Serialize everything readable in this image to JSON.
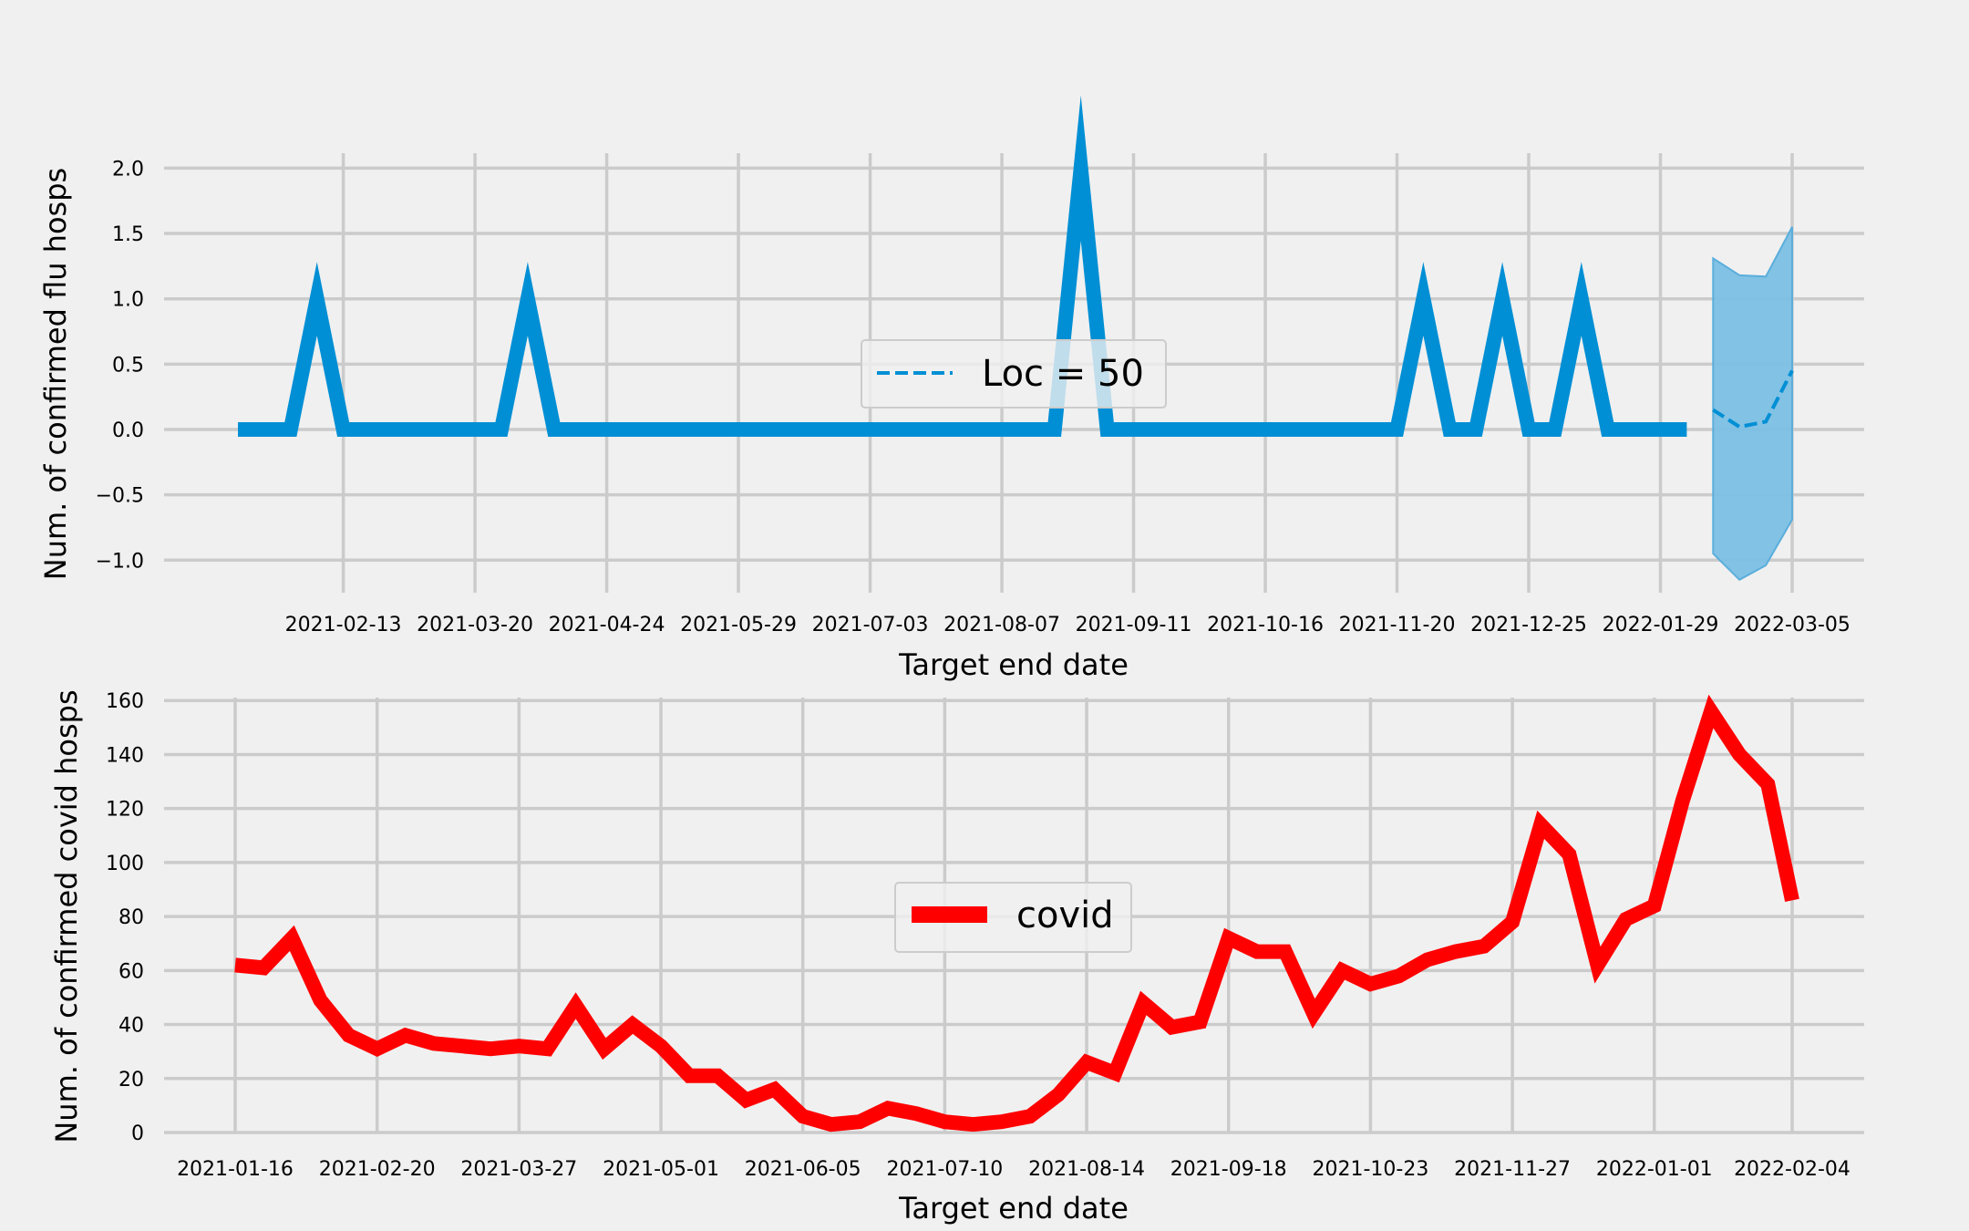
{
  "chart_data": [
    {
      "type": "line",
      "xlabel": "Target end date",
      "ylabel": "Num. of confirmed flu hosps",
      "ylim": [
        -1.25,
        2.1
      ],
      "yticks": [
        -1.0,
        -0.5,
        0.0,
        0.5,
        1.0,
        1.5,
        2.0
      ],
      "ytick_labels": [
        "−1.0",
        "−0.5",
        "0.0",
        "0.5",
        "1.0",
        "1.5",
        "2.0"
      ],
      "xticks": [
        "2021-02-13",
        "2021-03-20",
        "2021-04-24",
        "2021-05-29",
        "2021-07-03",
        "2021-08-07",
        "2021-09-11",
        "2021-10-16",
        "2021-11-20",
        "2021-12-25",
        "2022-01-29",
        "2022-03-05"
      ],
      "grid": true,
      "legend_position": "center",
      "series": [
        {
          "name": "",
          "color": "#008fd5",
          "style": "solid",
          "x": [
            "2021-01-16",
            "2021-01-23",
            "2021-01-30",
            "2021-02-06",
            "2021-02-13",
            "2021-02-20",
            "2021-02-27",
            "2021-03-06",
            "2021-03-13",
            "2021-03-20",
            "2021-03-27",
            "2021-04-03",
            "2021-04-10",
            "2021-04-17",
            "2021-04-24",
            "2021-05-01",
            "2021-05-08",
            "2021-05-15",
            "2021-05-22",
            "2021-05-29",
            "2021-06-05",
            "2021-06-12",
            "2021-06-19",
            "2021-06-26",
            "2021-07-03",
            "2021-07-10",
            "2021-07-17",
            "2021-07-24",
            "2021-07-31",
            "2021-08-07",
            "2021-08-14",
            "2021-08-21",
            "2021-08-28",
            "2021-09-04",
            "2021-09-11",
            "2021-09-18",
            "2021-09-25",
            "2021-10-02",
            "2021-10-09",
            "2021-10-16",
            "2021-10-23",
            "2021-10-30",
            "2021-11-06",
            "2021-11-13",
            "2021-11-20",
            "2021-11-27",
            "2021-12-04",
            "2021-12-11",
            "2021-12-18",
            "2021-12-25",
            "2022-01-01",
            "2022-01-08",
            "2022-01-15",
            "2022-01-22",
            "2022-01-29",
            "2022-02-05"
          ],
          "values": [
            0,
            0,
            0,
            1,
            0,
            0,
            0,
            0,
            0,
            0,
            0,
            1,
            0,
            0,
            0,
            0,
            0,
            0,
            0,
            0,
            0,
            0,
            0,
            0,
            0,
            0,
            0,
            0,
            0,
            0,
            0,
            0,
            2,
            0,
            0,
            0,
            0,
            0,
            0,
            0,
            0,
            0,
            0,
            0,
            0,
            1,
            0,
            0,
            1,
            0,
            0,
            1,
            0,
            0,
            0,
            0
          ]
        },
        {
          "name": "Loc = 50",
          "color": "#008fd5",
          "style": "dashed",
          "x": [
            "2022-02-12",
            "2022-02-19",
            "2022-02-26",
            "2022-03-05"
          ],
          "values": [
            0.15,
            0.02,
            0.06,
            0.45
          ],
          "band_upper": [
            1.31,
            1.18,
            1.17,
            1.55
          ],
          "band_lower": [
            -0.95,
            -1.15,
            -1.04,
            -0.69
          ],
          "band_color": "#7bbfe3"
        }
      ]
    },
    {
      "type": "line",
      "xlabel": "Target end date",
      "ylabel": "Num. of confirmed covid hosps",
      "ylim": [
        -2,
        162
      ],
      "yticks": [
        0,
        20,
        40,
        60,
        80,
        100,
        120,
        140,
        160
      ],
      "ytick_labels": [
        "0",
        "20",
        "40",
        "60",
        "80",
        "100",
        "120",
        "140",
        "160"
      ],
      "xticks": [
        "2021-01-16",
        "2021-02-20",
        "2021-03-27",
        "2021-05-01",
        "2021-06-05",
        "2021-07-10",
        "2021-08-14",
        "2021-09-18",
        "2021-10-23",
        "2021-11-27",
        "2022-01-01",
        "2022-02-04"
      ],
      "grid": true,
      "legend_position": "center",
      "series": [
        {
          "name": "covid",
          "color": "#ff0000",
          "style": "solid",
          "x": [
            "2021-01-16",
            "2021-01-23",
            "2021-01-30",
            "2021-02-06",
            "2021-02-13",
            "2021-02-20",
            "2021-02-27",
            "2021-03-06",
            "2021-03-13",
            "2021-03-20",
            "2021-03-27",
            "2021-04-03",
            "2021-04-10",
            "2021-04-17",
            "2021-04-24",
            "2021-05-01",
            "2021-05-08",
            "2021-05-15",
            "2021-05-22",
            "2021-05-29",
            "2021-06-05",
            "2021-06-12",
            "2021-06-19",
            "2021-06-26",
            "2021-07-03",
            "2021-07-10",
            "2021-07-17",
            "2021-07-24",
            "2021-07-31",
            "2021-08-07",
            "2021-08-14",
            "2021-08-21",
            "2021-08-28",
            "2021-09-04",
            "2021-09-11",
            "2021-09-18",
            "2021-09-25",
            "2021-10-02",
            "2021-10-09",
            "2021-10-16",
            "2021-10-23",
            "2021-10-30",
            "2021-11-06",
            "2021-11-13",
            "2021-11-20",
            "2021-11-27",
            "2021-12-04",
            "2021-12-11",
            "2021-12-18",
            "2021-12-25",
            "2022-01-01",
            "2022-01-08",
            "2022-01-15",
            "2022-01-22",
            "2022-01-29",
            "2022-02-04"
          ],
          "values": [
            62,
            61,
            72,
            49,
            36,
            31,
            36,
            33,
            32,
            31,
            32,
            31,
            47,
            31,
            40,
            32,
            21,
            21,
            12,
            16,
            6,
            3,
            4,
            9,
            7,
            4,
            3,
            4,
            6,
            14,
            26,
            22,
            48,
            39,
            41,
            72,
            67,
            67,
            44,
            60,
            55,
            58,
            64,
            67,
            69,
            78,
            114,
            103,
            62,
            79,
            84,
            123,
            156,
            140,
            129,
            86
          ]
        }
      ]
    }
  ]
}
